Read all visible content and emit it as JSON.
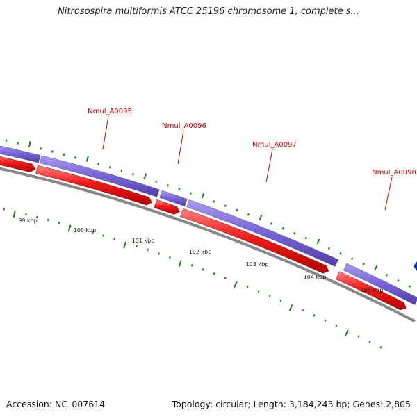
{
  "title": "Nitrosospira multiformis ATCC 25196 chromosome 1, complete s...",
  "footer": {
    "accession": "Accession: NC_007614",
    "summary": "Topology: circular; Length: 3,184,243 bp; Genes: 2,805"
  },
  "colors": {
    "cds": "#7B68D8",
    "gene": "#EE1C1C",
    "tick": "#1E7B1E",
    "backbone": "#888888",
    "label": "#CC0000",
    "marker": "#0033CC"
  },
  "gene_labels": [
    "Nmul_A0095",
    "Nmul_A0096",
    "Nmul_A0097",
    "Nmul_A0098"
  ],
  "scale_labels": [
    "99 kbp",
    "100 kbp",
    "101 kbp",
    "102 kbp",
    "103 kbp",
    "104 kbp",
    "105 kbp"
  ]
}
